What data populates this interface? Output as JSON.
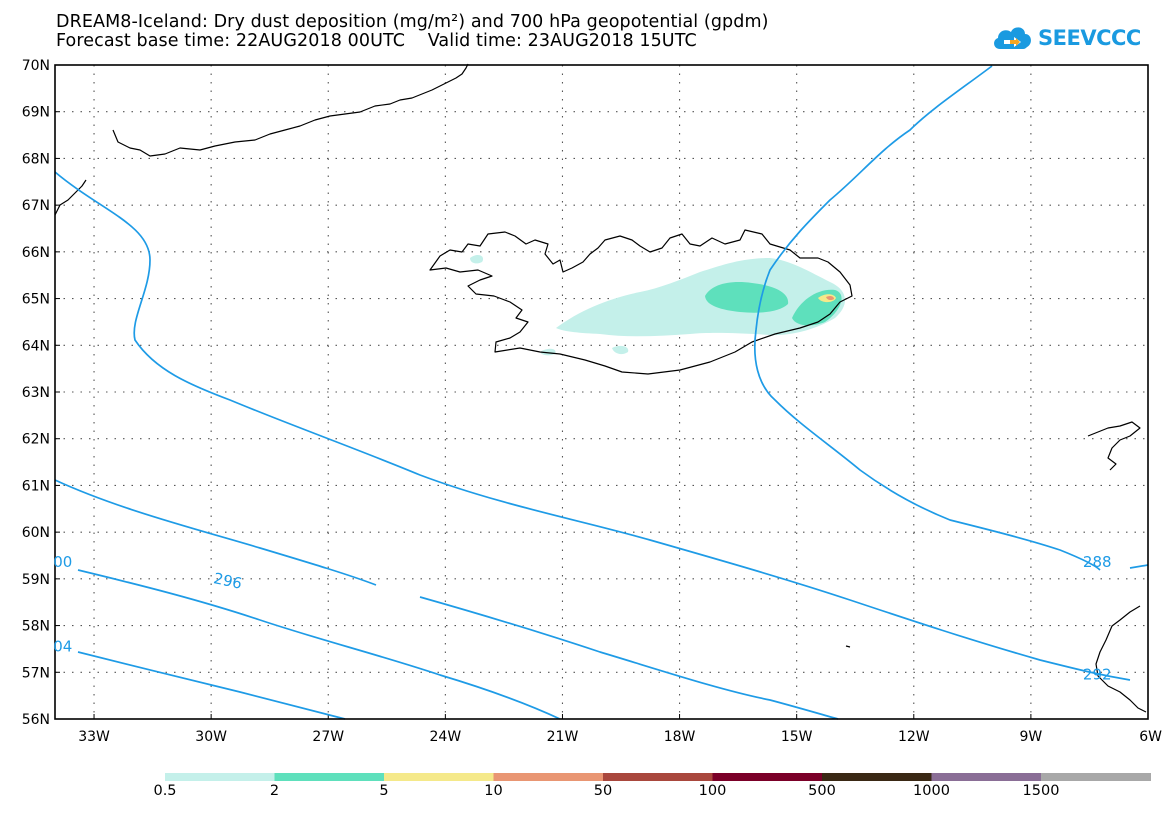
{
  "header": {
    "title_line1": "DREAM8-Iceland: Dry dust deposition (mg/m²) and 700 hPa geopotential (gpdm)",
    "title_line2": "Forecast base time: 22AUG2018 00UTC    Valid time: 23AUG2018 15UTC"
  },
  "logo": {
    "text": "SEEVCCC",
    "icon": "cloud-icon",
    "color": "#1a9ae0"
  },
  "map": {
    "lat_range": [
      56,
      70
    ],
    "lon_range": [
      -34,
      -6
    ],
    "lat_labels": [
      "70N",
      "69N",
      "68N",
      "67N",
      "66N",
      "65N",
      "64N",
      "63N",
      "62N",
      "61N",
      "60N",
      "59N",
      "58N",
      "57N",
      "56N"
    ],
    "lon_labels": [
      "33W",
      "30W",
      "27W",
      "24W",
      "21W",
      "18W",
      "15W",
      "12W",
      "9W",
      "6W"
    ],
    "contour_color": "#1e9be6",
    "contour_labels": [
      {
        "text": "296",
        "lon": -29.6,
        "lat": 58.85
      },
      {
        "text": "288",
        "lon": -7.3,
        "lat": 59.25
      },
      {
        "text": "292",
        "lon": -7.3,
        "lat": 56.85
      },
      {
        "text": "00",
        "lon": -33.8,
        "lat": 59.25
      },
      {
        "text": "04",
        "lon": -33.8,
        "lat": 57.45
      }
    ]
  },
  "colorbar": {
    "colors": [
      "#c4f0ea",
      "#5ee0bc",
      "#f5e98a",
      "#e99673",
      "#a9473d",
      "#7b0028",
      "#3a2814",
      "#8a6e96",
      "#a8a8a8"
    ],
    "labels": [
      "0.5",
      "2",
      "5",
      "10",
      "50",
      "100",
      "500",
      "1000",
      "1500"
    ]
  }
}
